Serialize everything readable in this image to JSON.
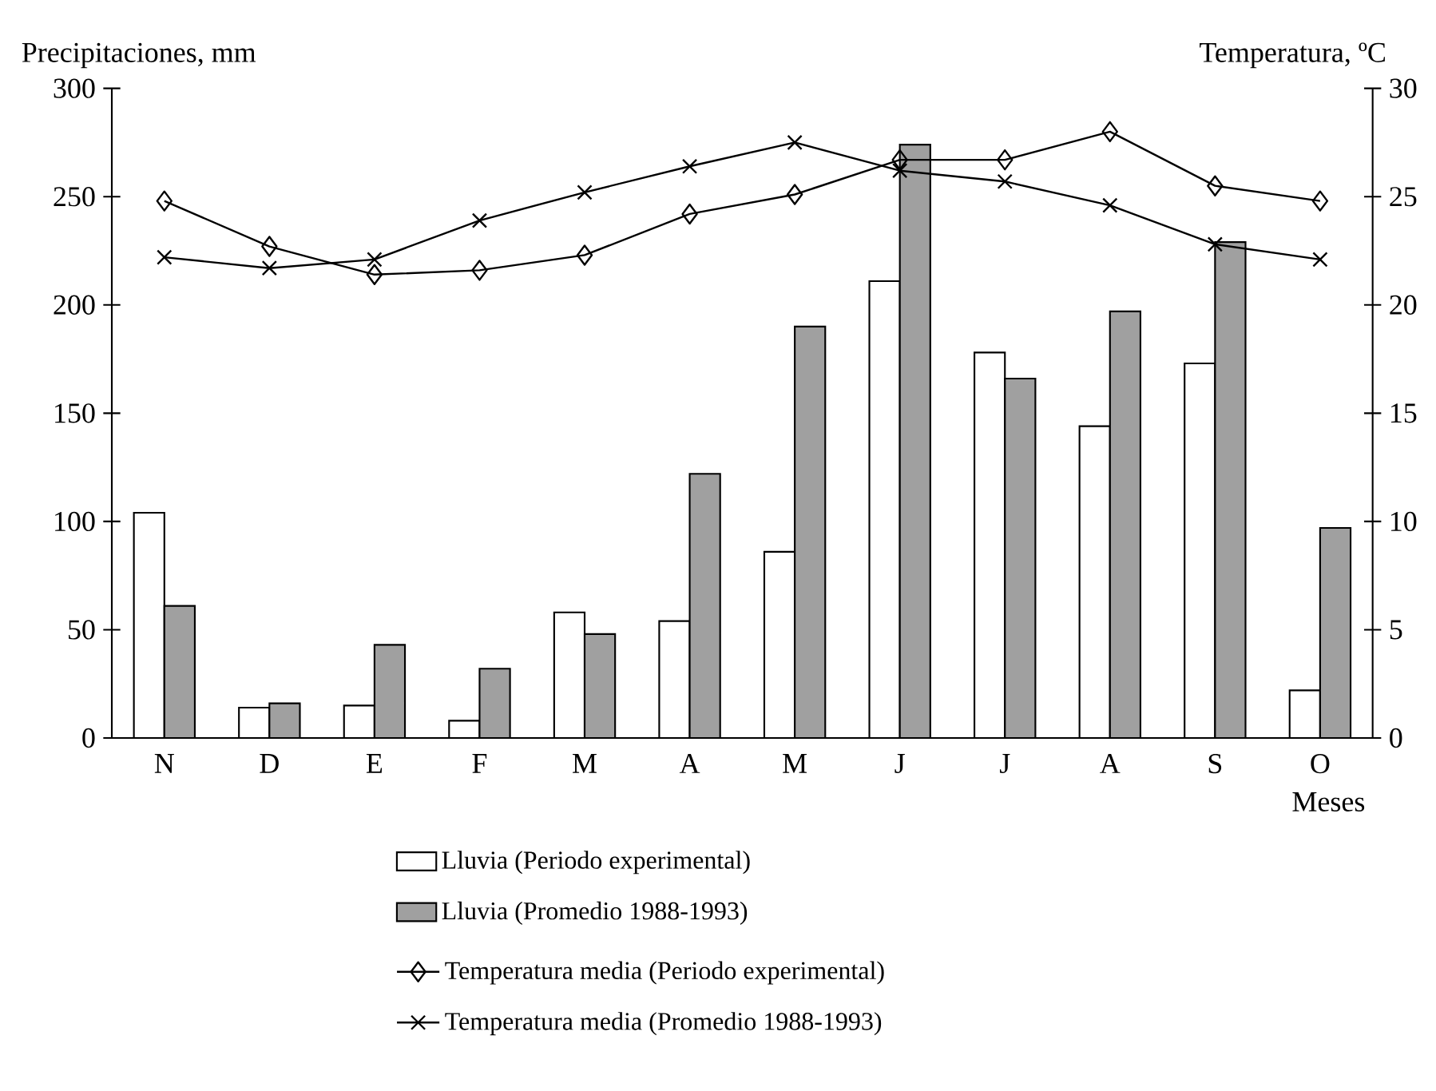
{
  "chart_data": {
    "type": "bar",
    "xlabel": "Meses",
    "ylabel": "Precipitaciones, mm",
    "y2label": "Temperatura, ºC",
    "categories": [
      "N",
      "D",
      "E",
      "F",
      "M",
      "A",
      "M",
      "J",
      "J",
      "A",
      "S",
      "O"
    ],
    "series": [
      {
        "name": "Lluvia (Periodo experimental)",
        "color": "#ffffff",
        "values": [
          104,
          14,
          15,
          8,
          58,
          54,
          86,
          211,
          178,
          144,
          173,
          22
        ]
      },
      {
        "name": "Lluvia (Promedio 1988-1993)",
        "color": "#a0a0a0",
        "values": [
          61,
          16,
          43,
          32,
          48,
          122,
          190,
          274,
          166,
          197,
          229,
          97
        ]
      },
      {
        "name": "Temperatura media (Periodo experimental)",
        "type": "line",
        "axis": "y2",
        "marker": "diamond",
        "color": "#000000",
        "values": [
          24.8,
          22.7,
          21.4,
          21.6,
          22.3,
          24.2,
          25.1,
          26.7,
          26.7,
          28.0,
          25.5,
          24.8
        ]
      },
      {
        "name": "Temperatura media (Promedio 1988-1993)",
        "type": "line",
        "axis": "y2",
        "marker": "cross",
        "color": "#000000",
        "values": [
          22.2,
          21.7,
          22.1,
          23.9,
          25.2,
          26.4,
          27.5,
          26.2,
          25.7,
          24.6,
          22.8,
          22.1
        ]
      }
    ],
    "ylim": [
      0,
      300
    ],
    "yticks": [
      0,
      50,
      100,
      150,
      200,
      250,
      300
    ],
    "y2lim": [
      0,
      30
    ],
    "y2ticks": [
      0,
      5,
      10,
      15,
      20,
      25,
      30
    ],
    "legend": "bottom"
  }
}
